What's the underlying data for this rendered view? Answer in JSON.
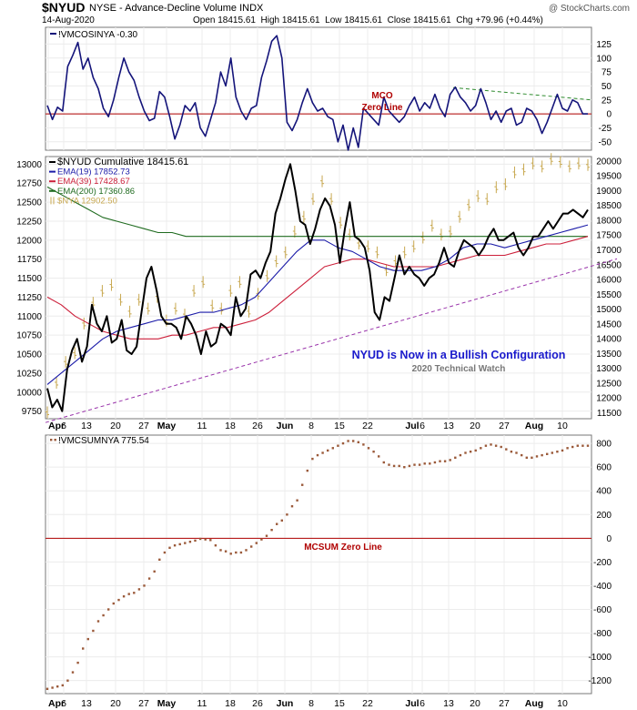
{
  "header": {
    "ticker": "$NYUD",
    "description": "NYSE - Advance-Decline Volume INDX",
    "watermark": "@ StockCharts.com",
    "date": "14-Aug-2020",
    "open_label": "Open",
    "open": "18415.61",
    "high_label": "High",
    "high": "18415.61",
    "low_label": "Low",
    "low": "18415.61",
    "close_label": "Close",
    "close": "18415.61",
    "chg_label": "Chg",
    "chg": "+79.96 (+0.44%)"
  },
  "x_axis_labels": [
    "Apr",
    "6",
    "13",
    "20",
    "27",
    "May",
    "11",
    "18",
    "26",
    "Jun",
    "8",
    "15",
    "22",
    "Jul",
    "6",
    "13",
    "20",
    "27",
    "Aug",
    "10"
  ],
  "colors": {
    "nyud": "#000000",
    "ema19": "#1a1aa8",
    "ema39": "#cc1f3a",
    "ema200": "#1f6b1f",
    "nya": "#c8a850",
    "mco": "#14147a",
    "mcsum": "#9b5a3a",
    "zero": "#b00000",
    "trend": "#9933aa",
    "mco_trend": "#2e8b2e",
    "annot": "#1a1acc"
  },
  "chart_data": [
    {
      "type": "line",
      "title": "!VMCOSINYA -0.30",
      "annotation": [
        "MCO",
        "Zero Line"
      ],
      "ylim": [
        -65,
        155
      ],
      "y_ticks": [
        125,
        100,
        75,
        50,
        25,
        0,
        -25,
        -50
      ],
      "series": [
        {
          "name": "!VMCOSINYA",
          "values": [
            15,
            -10,
            12,
            5,
            85,
            105,
            128,
            80,
            100,
            65,
            45,
            10,
            -5,
            25,
            65,
            100,
            75,
            60,
            30,
            5,
            -12,
            -8,
            40,
            30,
            -5,
            -45,
            -20,
            15,
            5,
            20,
            -25,
            -40,
            -10,
            20,
            75,
            50,
            100,
            30,
            5,
            -10,
            10,
            15,
            65,
            95,
            130,
            140,
            100,
            -15,
            -30,
            -10,
            20,
            45,
            20,
            5,
            10,
            -5,
            -10,
            -50,
            -20,
            -65,
            -25,
            -60,
            10,
            0,
            -10,
            -20,
            30,
            5,
            -5,
            -15,
            -5,
            15,
            30,
            5,
            20,
            10,
            35,
            10,
            -5,
            35,
            48,
            30,
            20,
            5,
            15,
            45,
            20,
            -10,
            5,
            -15,
            5,
            10,
            -20,
            -15,
            10,
            5,
            -10,
            -35,
            -15,
            10,
            35,
            10,
            5,
            25,
            20,
            0,
            0
          ]
        }
      ],
      "trend_line": {
        "from_y": 47,
        "to_y": 25
      }
    },
    {
      "type": "line",
      "title": "$NYUD Cumulative 18415.61",
      "annotation": [
        "NYUD is Now in a Bullish Configuration",
        "2020 Technical Watch"
      ],
      "ylim": [
        9650,
        13100
      ],
      "y_ticks_left": [
        13000,
        12750,
        12500,
        12250,
        12000,
        11750,
        11500,
        11250,
        11000,
        10750,
        10500,
        10250,
        10000,
        9750
      ],
      "ylim_right": [
        11300,
        20150
      ],
      "y_ticks_right": [
        20000,
        19500,
        19000,
        18500,
        18000,
        17500,
        17000,
        16500,
        16000,
        15500,
        15000,
        14500,
        14000,
        13500,
        13000,
        12500,
        12000,
        11500
      ],
      "series": [
        {
          "name": "$NYUD Cumulative 18415.61",
          "values": [
            10050,
            9800,
            9900,
            9750,
            10300,
            10550,
            10700,
            10400,
            10600,
            11150,
            10900,
            10800,
            11000,
            10650,
            10700,
            10950,
            10550,
            10500,
            10600,
            11050,
            11500,
            11650,
            11350,
            11000,
            10900,
            10900,
            10850,
            10700,
            11000,
            10900,
            10750,
            10500,
            10800,
            10600,
            10650,
            10900,
            10850,
            10750,
            11250,
            11000,
            11100,
            11550,
            11600,
            11500,
            11700,
            11850,
            12350,
            12550,
            12800,
            13000,
            12650,
            12250,
            12200,
            11950,
            12150,
            12400,
            12550,
            12450,
            12200,
            11700,
            12150,
            12500,
            12050,
            12000,
            11900,
            11600,
            11050,
            10950,
            11250,
            11200,
            11500,
            11800,
            11550,
            11650,
            11550,
            11500,
            11400,
            11500,
            11550,
            11700,
            11900,
            11700,
            11650,
            11850,
            12000,
            11950,
            11900,
            11800,
            11900,
            12050,
            12150,
            12000,
            12000,
            12050,
            12100,
            11900,
            11800,
            11900,
            12050,
            12050,
            12150,
            12250,
            12150,
            12250,
            12350,
            12350,
            12400,
            12350,
            12300,
            12400
          ]
        },
        {
          "name": "EMA(19) 17852.73",
          "values": [
            10100,
            10250,
            10400,
            10550,
            10700,
            10800,
            10850,
            10900,
            10950,
            10950,
            11000,
            11050,
            11050,
            11100,
            11150,
            11250,
            11450,
            11650,
            11850,
            12000,
            12000,
            11900,
            11850,
            11750,
            11650,
            11600,
            11600,
            11600,
            11650,
            11750,
            11900,
            11950,
            11950,
            11900,
            11950,
            12000,
            12050,
            12100,
            12150,
            12200
          ]
        },
        {
          "name": "EMA(39) 17428.67",
          "values": [
            11250,
            11150,
            11000,
            10900,
            10800,
            10750,
            10700,
            10700,
            10700,
            10750,
            10750,
            10800,
            10850,
            10850,
            10900,
            10950,
            11050,
            11200,
            11350,
            11500,
            11650,
            11700,
            11750,
            11750,
            11700,
            11650,
            11650,
            11650,
            11650,
            11700,
            11750,
            11800,
            11800,
            11800,
            11850,
            11900,
            11950,
            11950,
            12000,
            12050
          ]
        },
        {
          "name": "EMA(200) 17360.86",
          "values": [
            12700,
            12600,
            12500,
            12400,
            12300,
            12250,
            12200,
            12150,
            12100,
            12100,
            12050,
            12050,
            12050,
            12050,
            12050,
            12050,
            12050,
            12050,
            12050,
            12050,
            12050,
            12050,
            12050,
            12050,
            12050,
            12050,
            12050,
            12050,
            12050,
            12050,
            12050,
            12050,
            12050,
            12050,
            12050,
            12050,
            12050,
            12050,
            12050,
            12050
          ]
        },
        {
          "name": "$NYA 12902.50",
          "axis": "right",
          "values": [
            11500,
            12500,
            13200,
            13500,
            14500,
            15200,
            15600,
            15800,
            15300,
            14900,
            15300,
            15000,
            15400,
            14600,
            15000,
            14800,
            15600,
            15900,
            15100,
            15000,
            15600,
            15900,
            14900,
            15500,
            16100,
            16600,
            16900,
            17600,
            18100,
            18700,
            19300,
            18700,
            17900,
            17500,
            17200,
            17100,
            16900,
            16300,
            16600,
            16900,
            17100,
            17400,
            17800,
            17500,
            17600,
            18100,
            18500,
            18800,
            18700,
            19100,
            19200,
            19600,
            19700,
            19900,
            19800,
            20050,
            19950,
            19800,
            19900,
            19850
          ]
        }
      ],
      "trend_line": {
        "from_y": 9600,
        "to_y": 11850
      }
    },
    {
      "type": "scatter",
      "title": "!VMCSUMNYA 775.54",
      "annotation": "MCSUM Zero Line",
      "ylim": [
        -1310,
        870
      ],
      "y_ticks": [
        800,
        600,
        400,
        200,
        0,
        -200,
        -400,
        -600,
        -800,
        -1000,
        -1200
      ],
      "series": [
        {
          "name": "!VMCSUMNYA",
          "values": [
            -1270,
            -1260,
            -1250,
            -1240,
            -1200,
            -1130,
            -1050,
            -930,
            -850,
            -780,
            -700,
            -650,
            -600,
            -550,
            -520,
            -490,
            -470,
            -460,
            -430,
            -400,
            -340,
            -280,
            -180,
            -120,
            -80,
            -60,
            -50,
            -40,
            -30,
            -20,
            -5,
            -10,
            -15,
            -60,
            -100,
            -110,
            -130,
            -120,
            -120,
            -100,
            -70,
            -40,
            -10,
            20,
            70,
            120,
            150,
            200,
            270,
            320,
            450,
            570,
            670,
            700,
            720,
            740,
            760,
            780,
            800,
            820,
            820,
            810,
            790,
            760,
            730,
            690,
            640,
            620,
            610,
            610,
            600,
            610,
            620,
            620,
            630,
            630,
            640,
            650,
            650,
            660,
            680,
            700,
            720,
            730,
            740,
            760,
            780,
            790,
            780,
            770,
            750,
            730,
            720,
            700,
            680,
            680,
            690,
            700,
            710,
            720,
            730,
            740,
            760,
            770,
            780,
            780,
            780
          ]
        }
      ]
    }
  ]
}
